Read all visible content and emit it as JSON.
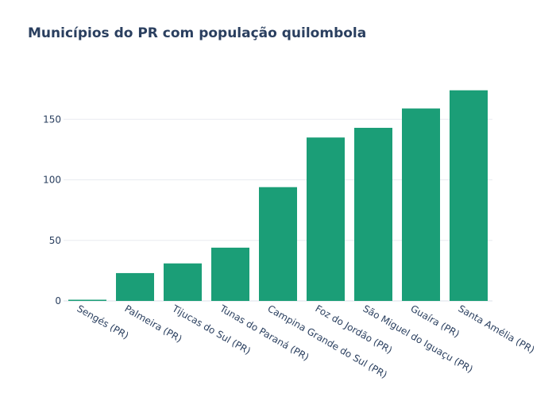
{
  "chart_data": {
    "type": "bar",
    "title": "Municípios do PR com população quilombola",
    "xlabel": "",
    "ylabel": "",
    "categories": [
      "Sengés (PR)",
      "Palmeira (PR)",
      "Tijucas do Sul (PR)",
      "Tunas do Paraná (PR)",
      "Campina Grande do Sul (PR)",
      "Foz do Jordão (PR)",
      "São Miguel do Iguaçu (PR)",
      "Guaíra (PR)",
      "Santa Amélia (PR)"
    ],
    "values": [
      1,
      23,
      31,
      44,
      94,
      135,
      143,
      159,
      174
    ],
    "ylim": [
      0,
      183
    ],
    "yticks": [
      0,
      50,
      100,
      150
    ],
    "grid": true,
    "legend": "none",
    "colors": {
      "bar": "#1b9e77",
      "grid": "#e8ebf0",
      "text": "#2a3f5f"
    }
  }
}
